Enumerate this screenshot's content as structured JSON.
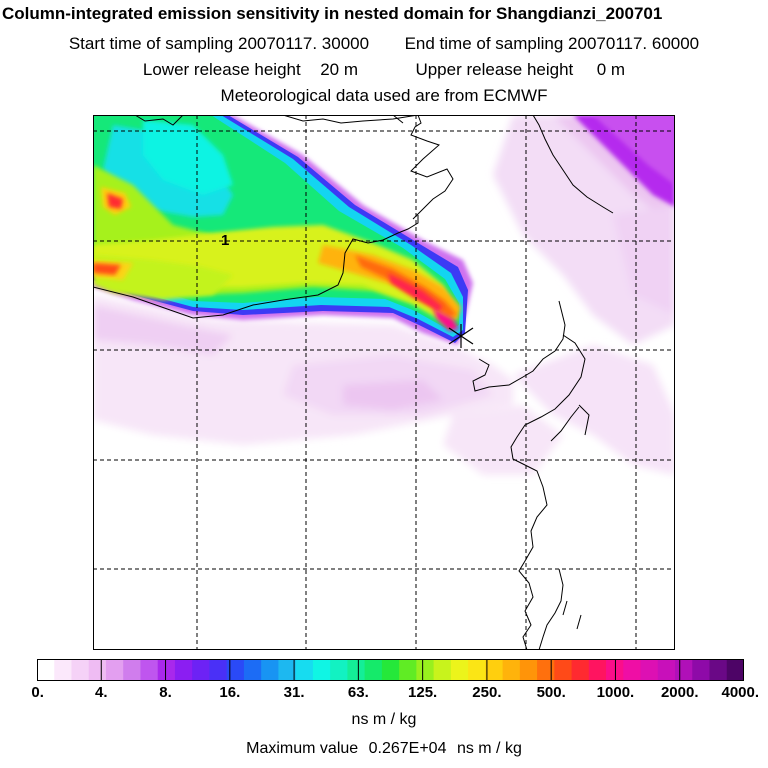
{
  "title": "Column-integrated emission sensitivity in nested domain for Shangdianzi_200701",
  "sampling": {
    "start_label": "Start time of sampling",
    "start_value": "20070117. 30000",
    "end_label": "End time of sampling",
    "end_value": "20070117. 60000"
  },
  "release": {
    "lower_label": "Lower release height",
    "lower_value": "20 m",
    "upper_label": "Upper release height",
    "upper_value": "0 m"
  },
  "met_line": "Meteorological data used are from ECMWF",
  "map": {
    "contour_label": "1",
    "colors": {
      "land_border": "#000000",
      "grid": "#000000",
      "receptor_marker": "#000000"
    }
  },
  "legend": {
    "tick_labels": [
      "0.",
      "4.",
      "8.",
      "16.",
      "31.",
      "63.",
      "125.",
      "250.",
      "500.",
      "1000.",
      "2000.",
      "4000."
    ],
    "colors": [
      "#ffffff",
      "#fbe8fb",
      "#f5d2f7",
      "#efbcf3",
      "#e39ff0",
      "#d07ded",
      "#bf55ef",
      "#a928ec",
      "#8b1ef2",
      "#6d22f5",
      "#4a30f7",
      "#2a4af7",
      "#1c6cf5",
      "#1894f3",
      "#1db8f0",
      "#17dcf0",
      "#10f5e4",
      "#12f2c2",
      "#14ee97",
      "#15ea6a",
      "#25e83a",
      "#60ec24",
      "#98f01e",
      "#c8f31c",
      "#ecf41b",
      "#fbe515",
      "#ffcf0e",
      "#ffb30b",
      "#ff9409",
      "#ff700d",
      "#ff4a18",
      "#ff2a30",
      "#ff1460",
      "#fb0e8a",
      "#ef0ea5",
      "#dd10b3",
      "#c810ba",
      "#b010b8",
      "#8e0aa8",
      "#6a0886",
      "#4d0466"
    ],
    "unit": "ns m / kg"
  },
  "max_value": {
    "label": "Maximum value",
    "value": "0.267E+04",
    "unit": "ns m / kg"
  }
}
